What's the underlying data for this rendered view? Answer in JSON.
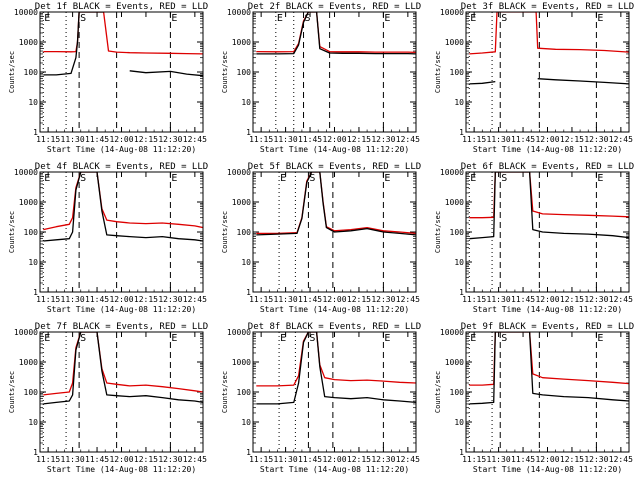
{
  "figure": {
    "background": "#ffffff",
    "axis_color": "#000000",
    "series_colors": {
      "events": "#000000",
      "lld": "#dd0000"
    }
  },
  "chart_data": [
    {
      "type": "line",
      "title": "Det 1f BLACK = Events, RED = LLD",
      "xlabel": "Start Time (14-Aug-08 11:12:20)",
      "ylabel": "Counts/sec",
      "yscale": "log",
      "ylim": [
        1,
        10000
      ],
      "xlim": [
        "11:10",
        "12:50"
      ],
      "x_ticks": [
        "11:15",
        "11:30",
        "11:45",
        "12:00",
        "12:15",
        "12:30",
        "12:45"
      ],
      "y_ticks": [
        "1",
        "10",
        "100",
        "1000",
        "10000"
      ],
      "dotted_lines": [
        "11:12",
        "11:26"
      ],
      "dashed_lines": [
        "11:34",
        "11:57",
        "12:30"
      ],
      "markers": [
        {
          "x": "11:12",
          "label": "E"
        },
        {
          "x": "11:34",
          "label": "S"
        },
        {
          "x": "12:30",
          "label": "E"
        }
      ],
      "series": [
        {
          "x": [
            "11:12",
            "11:20",
            "11:29",
            "11:32",
            "11:33",
            "11:34",
            "11:37",
            "11:49",
            "11:52",
            "11:57",
            "12:05",
            "12:15",
            "12:30",
            "12:40",
            "12:50"
          ],
          "values": [
            480,
            480,
            470,
            480,
            1000,
            10000,
            10000,
            10000,
            500,
            460,
            440,
            430,
            420,
            410,
            400
          ]
        },
        {
          "x": [
            "11:12",
            "11:20",
            "11:29",
            "11:32",
            "11:33",
            "11:34",
            "11:37",
            "11:49",
            "11:52",
            "11:57",
            "12:05",
            "12:15",
            "12:30",
            "12:40",
            "12:50"
          ],
          "values": [
            80,
            80,
            90,
            300,
            1000,
            10000,
            10000,
            10000,
            null,
            null,
            110,
            95,
            105,
            85,
            75
          ]
        }
      ]
    },
    {
      "type": "line",
      "title": "Det 2f BLACK = Events, RED = LLD",
      "xlabel": "Start Time (14-Aug-08 11:12:20)",
      "ylabel": "Counts/sec",
      "yscale": "log",
      "ylim": [
        1,
        10000
      ],
      "xlim": [
        "11:10",
        "12:50"
      ],
      "x_ticks": [
        "11:15",
        "11:30",
        "11:45",
        "12:00",
        "12:15",
        "12:30",
        "12:45"
      ],
      "y_ticks": [
        "1",
        "10",
        "100",
        "1000",
        "10000"
      ],
      "dotted_lines": [
        "11:24",
        "11:35"
      ],
      "dashed_lines": [
        "11:41",
        "11:57",
        "12:30"
      ],
      "markers": [
        {
          "x": "11:24",
          "label": "E"
        },
        {
          "x": "11:41",
          "label": "S"
        },
        {
          "x": "12:30",
          "label": "E"
        }
      ],
      "series": [
        {
          "x": [
            "11:12",
            "11:25",
            "11:35",
            "11:38",
            "11:41",
            "11:44",
            "11:49",
            "11:51",
            "11:57",
            "12:05",
            "12:15",
            "12:25",
            "12:35",
            "12:45",
            "12:50"
          ],
          "values": [
            480,
            470,
            480,
            900,
            5000,
            10000,
            10000,
            700,
            480,
            470,
            470,
            460,
            460,
            460,
            450
          ]
        },
        {
          "x": [
            "11:12",
            "11:25",
            "11:35",
            "11:38",
            "11:41",
            "11:44",
            "11:49",
            "11:51",
            "11:57",
            "12:05",
            "12:15",
            "12:25",
            "12:35",
            "12:45",
            "12:50"
          ],
          "values": [
            400,
            400,
            410,
            800,
            4500,
            10000,
            10000,
            600,
            430,
            420,
            420,
            410,
            410,
            410,
            400
          ]
        }
      ]
    },
    {
      "type": "line",
      "title": "Det 3f BLACK = Events, RED = LLD",
      "xlabel": "Start Time (14-Aug-08 11:12:20)",
      "ylabel": "Counts/sec",
      "yscale": "log",
      "ylim": [
        1,
        10000
      ],
      "xlim": [
        "11:10",
        "12:50"
      ],
      "x_ticks": [
        "11:15",
        "11:30",
        "11:45",
        "12:00",
        "12:15",
        "12:30",
        "12:45"
      ],
      "y_ticks": [
        "1",
        "10",
        "100",
        "1000",
        "10000"
      ],
      "dotted_lines": [
        "11:12",
        "11:26"
      ],
      "dashed_lines": [
        "11:31",
        "11:55",
        "12:30"
      ],
      "markers": [
        {
          "x": "11:12",
          "label": "E"
        },
        {
          "x": "11:31",
          "label": "S"
        },
        {
          "x": "12:30",
          "label": "E"
        }
      ],
      "series": [
        {
          "x": [
            "11:12",
            "11:20",
            "11:28",
            "11:29",
            "11:35",
            "11:53",
            "11:54",
            "12:05",
            "12:20",
            "12:35",
            "12:50"
          ],
          "values": [
            400,
            430,
            470,
            10000,
            10000,
            10000,
            620,
            570,
            560,
            520,
            460
          ]
        },
        {
          "x": [
            "11:12",
            "11:20",
            "11:28",
            "11:29",
            "11:35",
            "11:53",
            "11:54",
            "12:05",
            "12:20",
            "12:35",
            "12:50"
          ],
          "values": [
            40,
            42,
            48,
            null,
            null,
            null,
            60,
            55,
            50,
            45,
            40
          ]
        }
      ]
    },
    {
      "type": "line",
      "title": "Det 4f BLACK = Events, RED = LLD",
      "xlabel": "Start Time (14-Aug-08 11:12:20)",
      "ylabel": "Counts/sec",
      "yscale": "log",
      "ylim": [
        1,
        10000
      ],
      "xlim": [
        "11:10",
        "12:50"
      ],
      "x_ticks": [
        "11:15",
        "11:30",
        "11:45",
        "12:00",
        "12:15",
        "12:30",
        "12:45"
      ],
      "y_ticks": [
        "1",
        "10",
        "100",
        "1000",
        "10000"
      ],
      "dotted_lines": [
        "11:12",
        "11:26"
      ],
      "dashed_lines": [
        "11:34",
        "11:57",
        "12:30"
      ],
      "markers": [
        {
          "x": "11:12",
          "label": "E"
        },
        {
          "x": "11:34",
          "label": "S"
        },
        {
          "x": "12:30",
          "label": "E"
        }
      ],
      "series": [
        {
          "x": [
            "11:12",
            "11:20",
            "11:28",
            "11:30",
            "11:32",
            "11:35",
            "11:45",
            "11:48",
            "11:51",
            "11:57",
            "12:05",
            "12:15",
            "12:25",
            "12:35",
            "12:45",
            "12:50"
          ],
          "values": [
            120,
            150,
            180,
            300,
            3000,
            10000,
            10000,
            600,
            250,
            220,
            200,
            190,
            200,
            180,
            160,
            140
          ]
        },
        {
          "x": [
            "11:12",
            "11:20",
            "11:28",
            "11:30",
            "11:32",
            "11:35",
            "11:45",
            "11:48",
            "11:51",
            "11:57",
            "12:05",
            "12:15",
            "12:25",
            "12:35",
            "12:45",
            "12:50"
          ],
          "values": [
            50,
            55,
            60,
            100,
            2500,
            10000,
            10000,
            500,
            80,
            75,
            70,
            65,
            70,
            60,
            55,
            50
          ]
        }
      ]
    },
    {
      "type": "line",
      "title": "Det 5f BLACK = Events, RED = LLD",
      "xlabel": "Start Time (14-Aug-08 11:12:20)",
      "ylabel": "Counts/sec",
      "yscale": "log",
      "ylim": [
        1,
        10000
      ],
      "xlim": [
        "11:10",
        "12:50"
      ],
      "x_ticks": [
        "11:15",
        "11:30",
        "11:45",
        "12:00",
        "12:15",
        "12:30",
        "12:45"
      ],
      "y_ticks": [
        "1",
        "10",
        "100",
        "1000",
        "10000"
      ],
      "dotted_lines": [
        "11:26",
        "11:36"
      ],
      "dashed_lines": [
        "11:44",
        "11:59",
        "12:30"
      ],
      "markers": [
        {
          "x": "11:26",
          "label": "E"
        },
        {
          "x": "11:44",
          "label": "S"
        },
        {
          "x": "12:30",
          "label": "E"
        }
      ],
      "series": [
        {
          "x": [
            "11:12",
            "11:25",
            "11:37",
            "11:40",
            "11:43",
            "11:46",
            "11:51",
            "11:53",
            "11:55",
            "12:00",
            "12:10",
            "12:20",
            "12:30",
            "12:40",
            "12:50"
          ],
          "values": [
            90,
            90,
            95,
            300,
            5000,
            10000,
            10000,
            1000,
            150,
            110,
            120,
            140,
            110,
            100,
            90
          ]
        },
        {
          "x": [
            "11:12",
            "11:25",
            "11:37",
            "11:40",
            "11:43",
            "11:46",
            "11:51",
            "11:53",
            "11:55",
            "12:00",
            "12:10",
            "12:20",
            "12:30",
            "12:40",
            "12:50"
          ],
          "values": [
            80,
            85,
            90,
            280,
            4500,
            10000,
            10000,
            900,
            140,
            100,
            110,
            130,
            100,
            90,
            80
          ]
        }
      ]
    },
    {
      "type": "line",
      "title": "Det 6f BLACK = Events, RED = LLD",
      "xlabel": "Start Time (14-Aug-08 11:12:20)",
      "ylabel": "Counts/sec",
      "yscale": "log",
      "ylim": [
        1,
        10000
      ],
      "xlim": [
        "11:10",
        "12:50"
      ],
      "x_ticks": [
        "11:15",
        "11:30",
        "11:45",
        "12:00",
        "12:15",
        "12:30",
        "12:45"
      ],
      "y_ticks": [
        "1",
        "10",
        "100",
        "1000",
        "10000"
      ],
      "dotted_lines": [
        "11:12",
        "11:26"
      ],
      "dashed_lines": [
        "11:31",
        "11:55",
        "12:30"
      ],
      "markers": [
        {
          "x": "11:12",
          "label": "E"
        },
        {
          "x": "11:31",
          "label": "S"
        },
        {
          "x": "12:30",
          "label": "E"
        }
      ],
      "series": [
        {
          "x": [
            "11:12",
            "11:20",
            "11:27",
            "11:28",
            "11:32",
            "11:49",
            "11:51",
            "11:57",
            "12:10",
            "12:25",
            "12:40",
            "12:50"
          ],
          "values": [
            300,
            300,
            310,
            10000,
            10000,
            10000,
            500,
            400,
            380,
            360,
            340,
            320
          ]
        },
        {
          "x": [
            "11:12",
            "11:20",
            "11:27",
            "11:28",
            "11:32",
            "11:49",
            "11:51",
            "11:57",
            "12:10",
            "12:25",
            "12:40",
            "12:50"
          ],
          "values": [
            60,
            65,
            70,
            10000,
            10000,
            10000,
            120,
            100,
            90,
            85,
            75,
            65
          ]
        }
      ]
    },
    {
      "type": "line",
      "title": "Det 7f BLACK = Events, RED = LLD",
      "xlabel": "Start Time (14-Aug-08 11:12:20)",
      "ylabel": "Counts/sec",
      "yscale": "log",
      "ylim": [
        1,
        10000
      ],
      "xlim": [
        "11:10",
        "12:50"
      ],
      "x_ticks": [
        "11:15",
        "11:30",
        "11:45",
        "12:00",
        "12:15",
        "12:30",
        "12:45"
      ],
      "y_ticks": [
        "1",
        "10",
        "100",
        "1000",
        "10000"
      ],
      "dotted_lines": [
        "11:12",
        "11:26"
      ],
      "dashed_lines": [
        "11:34",
        "11:57",
        "12:30"
      ],
      "markers": [
        {
          "x": "11:12",
          "label": "E"
        },
        {
          "x": "11:34",
          "label": "S"
        },
        {
          "x": "12:30",
          "label": "E"
        }
      ],
      "series": [
        {
          "x": [
            "11:12",
            "11:20",
            "11:28",
            "11:30",
            "11:32",
            "11:35",
            "11:45",
            "11:48",
            "11:51",
            "11:57",
            "12:05",
            "12:15",
            "12:25",
            "12:35",
            "12:45",
            "12:50"
          ],
          "values": [
            80,
            90,
            100,
            200,
            3000,
            10000,
            10000,
            600,
            200,
            180,
            160,
            170,
            150,
            130,
            110,
            100
          ]
        },
        {
          "x": [
            "11:12",
            "11:20",
            "11:28",
            "11:30",
            "11:32",
            "11:35",
            "11:45",
            "11:48",
            "11:51",
            "11:57",
            "12:05",
            "12:15",
            "12:25",
            "12:35",
            "12:45",
            "12:50"
          ],
          "values": [
            40,
            45,
            50,
            80,
            2500,
            10000,
            10000,
            500,
            80,
            75,
            70,
            75,
            65,
            55,
            50,
            45
          ]
        }
      ]
    },
    {
      "type": "line",
      "title": "Det 8f BLACK = Events, RED = LLD",
      "xlabel": "Start Time (14-Aug-08 11:12:20)",
      "ylabel": "Counts/sec",
      "yscale": "log",
      "ylim": [
        1,
        10000
      ],
      "xlim": [
        "11:10",
        "12:50"
      ],
      "x_ticks": [
        "11:15",
        "11:30",
        "11:45",
        "12:00",
        "12:15",
        "12:30",
        "12:45"
      ],
      "y_ticks": [
        "1",
        "10",
        "100",
        "1000",
        "10000"
      ],
      "dotted_lines": [
        "11:26",
        "11:36"
      ],
      "dashed_lines": [
        "11:44",
        "11:59",
        "12:30"
      ],
      "markers": [
        {
          "x": "11:26",
          "label": "E"
        },
        {
          "x": "11:44",
          "label": "S"
        },
        {
          "x": "12:30",
          "label": "E"
        }
      ],
      "series": [
        {
          "x": [
            "11:12",
            "11:25",
            "11:35",
            "11:38",
            "11:41",
            "11:44",
            "11:49",
            "11:51",
            "11:54",
            "12:00",
            "12:10",
            "12:20",
            "12:30",
            "12:40",
            "12:50"
          ],
          "values": [
            160,
            160,
            170,
            350,
            5000,
            10000,
            10000,
            800,
            300,
            260,
            240,
            250,
            230,
            210,
            200
          ]
        },
        {
          "x": [
            "11:12",
            "11:25",
            "11:35",
            "11:38",
            "11:41",
            "11:44",
            "11:49",
            "11:51",
            "11:54",
            "12:00",
            "12:10",
            "12:20",
            "12:30",
            "12:40",
            "12:50"
          ],
          "values": [
            40,
            40,
            45,
            200,
            4500,
            10000,
            10000,
            700,
            70,
            65,
            60,
            65,
            55,
            50,
            45
          ]
        }
      ]
    },
    {
      "type": "line",
      "title": "Det 9f BLACK = Events, RED = LLD",
      "xlabel": "Start Time (14-Aug-08 11:12:20)",
      "ylabel": "Counts/sec",
      "yscale": "log",
      "ylim": [
        1,
        10000
      ],
      "xlim": [
        "11:10",
        "12:50"
      ],
      "x_ticks": [
        "11:15",
        "11:30",
        "11:45",
        "12:00",
        "12:15",
        "12:30",
        "12:45"
      ],
      "y_ticks": [
        "1",
        "10",
        "100",
        "1000",
        "10000"
      ],
      "dotted_lines": [
        "11:12",
        "11:26"
      ],
      "dashed_lines": [
        "11:31",
        "11:55",
        "12:30"
      ],
      "markers": [
        {
          "x": "11:12",
          "label": "E"
        },
        {
          "x": "11:31",
          "label": "S"
        },
        {
          "x": "12:30",
          "label": "E"
        }
      ],
      "series": [
        {
          "x": [
            "11:12",
            "11:20",
            "11:27",
            "11:28",
            "11:32",
            "11:49",
            "11:51",
            "11:57",
            "12:10",
            "12:25",
            "12:40",
            "12:50"
          ],
          "values": [
            170,
            170,
            180,
            10000,
            10000,
            10000,
            400,
            300,
            270,
            240,
            210,
            190
          ]
        },
        {
          "x": [
            "11:12",
            "11:20",
            "11:27",
            "11:28",
            "11:32",
            "11:49",
            "11:51",
            "11:57",
            "12:10",
            "12:25",
            "12:40",
            "12:50"
          ],
          "values": [
            40,
            42,
            45,
            10000,
            10000,
            10000,
            90,
            80,
            70,
            65,
            55,
            50
          ]
        }
      ]
    }
  ]
}
